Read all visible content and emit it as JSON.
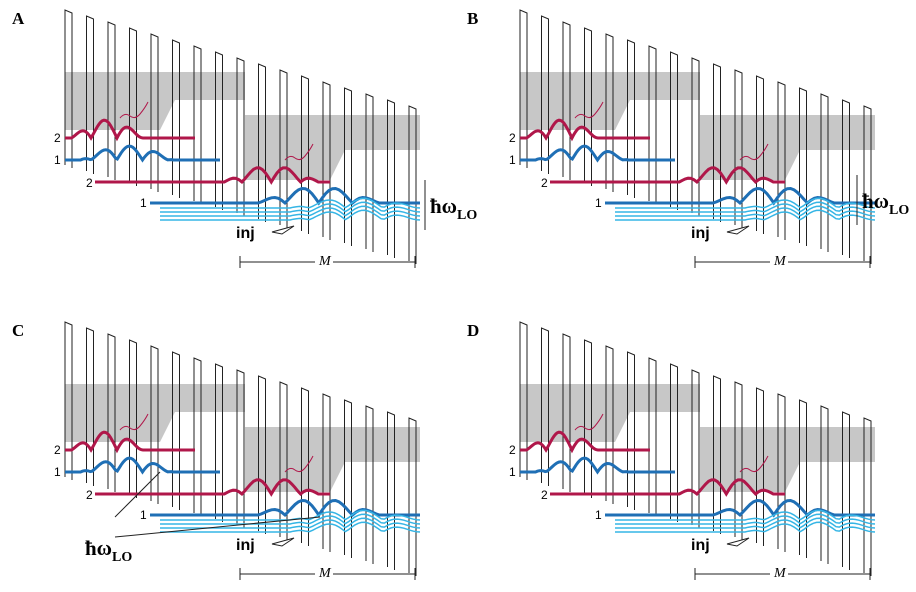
{
  "panels": [
    {
      "label": "A",
      "levels_upper": [
        "2",
        "1"
      ],
      "levels_lower": [
        "2",
        "1"
      ],
      "inj": "inj",
      "period": "M",
      "energy": {
        "symbol": "ħω",
        "subscript": "LO"
      }
    },
    {
      "label": "B",
      "levels_upper": [
        "2",
        "1"
      ],
      "levels_lower": [
        "2",
        "1"
      ],
      "inj": "inj",
      "period": "M",
      "energy": {
        "symbol": "ħω",
        "subscript": "LO"
      }
    },
    {
      "label": "C",
      "levels_upper": [
        "2",
        "1"
      ],
      "levels_lower": [
        "2",
        "1"
      ],
      "inj": "inj",
      "period": "M",
      "energy": {
        "symbol": "ħω",
        "subscript": "LO"
      }
    },
    {
      "label": "D",
      "levels_upper": [
        "2",
        "1"
      ],
      "levels_lower": [
        "2",
        "1"
      ],
      "inj": "inj",
      "period": "M"
    }
  ]
}
